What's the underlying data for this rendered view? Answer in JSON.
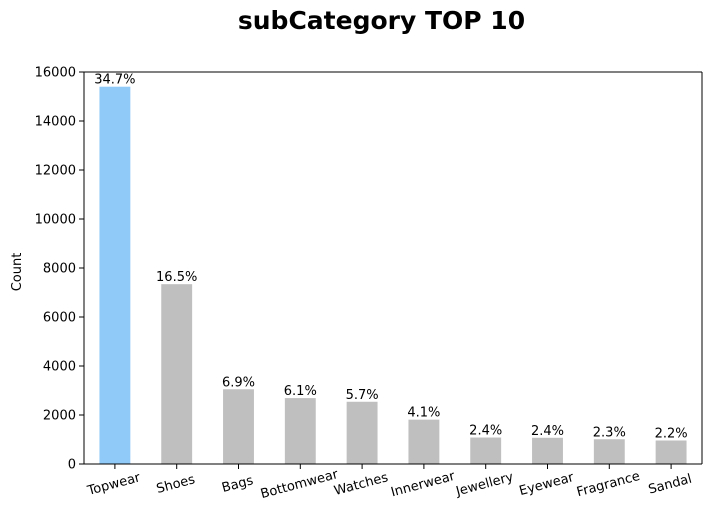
{
  "chart_data": {
    "type": "bar",
    "title": "subCategory TOP 10",
    "xlabel": "",
    "ylabel": "Count",
    "ylim": [
      0,
      16000
    ],
    "yticks": [
      0,
      2000,
      4000,
      6000,
      8000,
      10000,
      12000,
      14000,
      16000
    ],
    "categories": [
      "Topwear",
      "Shoes",
      "Bags",
      "Bottomwear",
      "Watches",
      "Innerwear",
      "Jewellery",
      "Eyewear",
      "Fragrance",
      "Sandal"
    ],
    "values": [
      15400,
      7340,
      3050,
      2690,
      2540,
      1810,
      1080,
      1070,
      1010,
      960
    ],
    "data_labels": [
      "34.7%",
      "16.5%",
      "6.9%",
      "6.1%",
      "5.7%",
      "4.1%",
      "2.4%",
      "2.4%",
      "2.3%",
      "2.2%"
    ],
    "highlight_color": "#90caf9",
    "bar_color": "#bfbfbf",
    "grid": false,
    "legend": "none"
  }
}
